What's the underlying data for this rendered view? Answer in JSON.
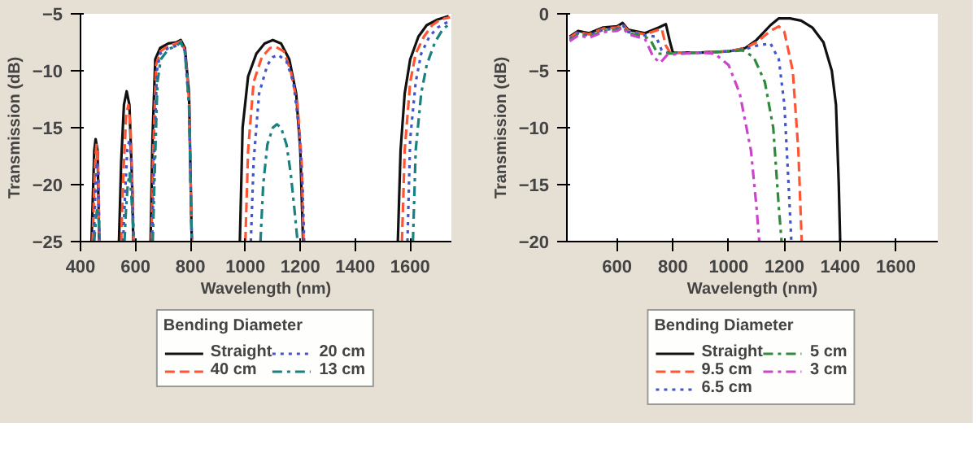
{
  "chart_data": [
    {
      "type": "line",
      "xlabel": "Wavelength (nm)",
      "ylabel": "Transmission (dB)",
      "legend_title": "Bending Diameter",
      "legend": "bottom",
      "xlim": [
        400,
        1750
      ],
      "ylim": [
        -25,
        -5
      ],
      "xticks": [
        400,
        600,
        800,
        1000,
        1200,
        1400,
        1600
      ],
      "yticks": [
        -25,
        -20,
        -15,
        -10,
        -5
      ],
      "series": [
        {
          "name": "Straight",
          "color": "#111111",
          "line_style": "solid",
          "x": [
            440,
            450,
            455,
            462,
            468,
            500,
            540,
            548,
            558,
            568,
            578,
            588,
            592,
            620,
            655,
            662,
            672,
            690,
            720,
            750,
            765,
            780,
            795,
            805,
            900,
            980,
            990,
            1010,
            1040,
            1070,
            1100,
            1130,
            1160,
            1185,
            1200,
            1210,
            1400,
            1555,
            1565,
            1580,
            1600,
            1630,
            1660,
            1700,
            1740
          ],
          "values": [
            -25,
            -17,
            -16,
            -17,
            -25,
            null,
            -25,
            -18,
            -13,
            -11.8,
            -13,
            -20,
            -25,
            null,
            -25,
            -16,
            -9,
            -8,
            -7.6,
            -7.5,
            -7.3,
            -8,
            -12,
            -25,
            null,
            -25,
            -15,
            -10.5,
            -8.5,
            -7.6,
            -7.3,
            -7.6,
            -9,
            -12,
            -17,
            -25,
            null,
            -25,
            -17,
            -12,
            -9,
            -7,
            -6,
            -5.5,
            -5.2
          ]
        },
        {
          "name": "40 cm",
          "color": "#ff5533",
          "line_style": "dashed",
          "x": [
            444,
            453,
            458,
            464,
            468,
            500,
            548,
            556,
            566,
            574,
            582,
            590,
            593,
            620,
            658,
            665,
            675,
            690,
            720,
            750,
            765,
            780,
            795,
            805,
            900,
            1000,
            1010,
            1030,
            1060,
            1090,
            1110,
            1140,
            1165,
            1190,
            1205,
            1212,
            1400,
            1570,
            1580,
            1600,
            1620,
            1650,
            1680,
            1710,
            1745
          ],
          "values": [
            -25,
            -18,
            -16.5,
            -18,
            -25,
            null,
            -25,
            -19,
            -14,
            -13,
            -15,
            -21,
            -25,
            null,
            -25,
            -17,
            -9.5,
            -8.3,
            -7.8,
            -7.6,
            -7.4,
            -8.2,
            -12.5,
            -25,
            null,
            -25,
            -17,
            -11,
            -8.8,
            -8,
            -7.9,
            -8.3,
            -10,
            -13,
            -18,
            -25,
            null,
            -25,
            -17,
            -11,
            -8.5,
            -7,
            -6,
            -5.5,
            -5.3
          ]
        },
        {
          "name": "20 cm",
          "color": "#4455cc",
          "line_style": "dotted",
          "x": [
            448,
            455,
            460,
            465,
            469,
            500,
            555,
            562,
            570,
            578,
            585,
            590,
            594,
            620,
            660,
            668,
            678,
            690,
            720,
            750,
            765,
            780,
            795,
            805,
            900,
            1020,
            1030,
            1050,
            1080,
            1100,
            1120,
            1150,
            1175,
            1195,
            1208,
            1214,
            1400,
            1590,
            1600,
            1620,
            1640,
            1670,
            1700,
            1745
          ],
          "values": [
            -25,
            -20,
            -18,
            -19,
            -25,
            null,
            -25,
            -21,
            -17,
            -16,
            -18,
            -22,
            -25,
            null,
            -25,
            -18,
            -10,
            -8.5,
            -8,
            -7.8,
            -7.5,
            -8.3,
            -13,
            -25,
            null,
            -25,
            -18,
            -12,
            -9.5,
            -8.8,
            -8.6,
            -9.2,
            -11,
            -15,
            -20,
            -25,
            null,
            -25,
            -16,
            -11,
            -8.5,
            -7,
            -6.2,
            -5.6
          ]
        },
        {
          "name": "13 cm",
          "color": "#1a8080",
          "line_style": "dashdot",
          "x": [
            450,
            456,
            461,
            466,
            470,
            500,
            560,
            566,
            572,
            579,
            585,
            590,
            594,
            620,
            663,
            670,
            680,
            692,
            720,
            750,
            765,
            780,
            795,
            805,
            900,
            1055,
            1065,
            1080,
            1100,
            1115,
            1130,
            1150,
            1165,
            1178,
            1190,
            1400,
            1610,
            1620,
            1640,
            1660,
            1690,
            1720,
            1750
          ],
          "values": [
            -25,
            -23,
            -22,
            -23,
            -25,
            null,
            -25,
            -22,
            -20,
            -19,
            -21,
            -23,
            -25,
            null,
            -25,
            -19,
            -11,
            -9,
            -8.1,
            -7.8,
            -7.5,
            -8.4,
            -13,
            -25,
            null,
            -25,
            -20,
            -16.5,
            -15,
            -14.7,
            -15,
            -16.5,
            -19,
            -22,
            -25,
            null,
            -25,
            -17,
            -12,
            -9.5,
            -7.5,
            -6.3,
            -5.8
          ]
        }
      ]
    },
    {
      "type": "line",
      "xlabel": "Wavelength (nm)",
      "ylabel": "Transmission (dB)",
      "legend_title": "Bending Diameter",
      "legend": "bottom",
      "xlim": [
        420,
        1750
      ],
      "ylim": [
        -20,
        0
      ],
      "xticks": [
        600,
        800,
        1000,
        1200,
        1400,
        1600
      ],
      "yticks": [
        -20,
        -15,
        -10,
        -5,
        0
      ],
      "series": [
        {
          "name": "Straight",
          "color": "#111111",
          "line_style": "solid",
          "x": [
            430,
            460,
            500,
            550,
            600,
            620,
            640,
            700,
            750,
            775,
            790,
            800,
            900,
            1000,
            1060,
            1100,
            1150,
            1180,
            1220,
            1260,
            1300,
            1340,
            1370,
            1385,
            1395,
            1400
          ],
          "values": [
            -2,
            -1.5,
            -1.7,
            -1.2,
            -1.1,
            -0.8,
            -1.4,
            -1.7,
            -1.2,
            -0.9,
            -2.5,
            -3.4,
            -3.4,
            -3.3,
            -3,
            -2.3,
            -1,
            -0.4,
            -0.4,
            -0.6,
            -1.2,
            -2.5,
            -5,
            -8,
            -15,
            -20
          ]
        },
        {
          "name": "9.5 cm",
          "color": "#ff5533",
          "line_style": "dashed",
          "x": [
            430,
            460,
            500,
            550,
            600,
            620,
            640,
            700,
            760,
            775,
            790,
            900,
            1000,
            1060,
            1100,
            1150,
            1180,
            1200,
            1230,
            1250,
            1262
          ],
          "values": [
            -2.1,
            -1.6,
            -1.8,
            -1.3,
            -1.2,
            -0.9,
            -1.5,
            -1.8,
            -1.3,
            -2.8,
            -3.4,
            -3.4,
            -3.3,
            -3,
            -2.5,
            -1.5,
            -1.1,
            -1.6,
            -5,
            -12,
            -20
          ]
        },
        {
          "name": "6.5 cm",
          "color": "#4455cc",
          "line_style": "dotted",
          "x": [
            430,
            460,
            500,
            550,
            600,
            620,
            640,
            700,
            740,
            760,
            780,
            900,
            1000,
            1060,
            1100,
            1150,
            1180,
            1200,
            1215,
            1225
          ],
          "values": [
            -2.2,
            -1.7,
            -1.9,
            -1.4,
            -1.3,
            -1,
            -1.6,
            -1.9,
            -2,
            -3.2,
            -3.4,
            -3.4,
            -3.3,
            -3.1,
            -2.8,
            -2.6,
            -4,
            -8,
            -15,
            -20
          ]
        },
        {
          "name": "5 cm",
          "color": "#2e8b3a",
          "line_style": "dashdot",
          "x": [
            430,
            460,
            500,
            550,
            600,
            620,
            640,
            700,
            720,
            745,
            770,
            900,
            1000,
            1050,
            1090,
            1130,
            1160,
            1180,
            1190
          ],
          "values": [
            -2.3,
            -1.8,
            -2,
            -1.5,
            -1.4,
            -1.1,
            -1.7,
            -2,
            -2.3,
            -3.5,
            -3.5,
            -3.4,
            -3.3,
            -3.2,
            -3.8,
            -6,
            -10,
            -17,
            -20
          ]
        },
        {
          "name": "3 cm",
          "color": "#cc44cc",
          "line_style": "dashdot",
          "x": [
            430,
            460,
            500,
            550,
            600,
            620,
            640,
            700,
            730,
            755,
            780,
            900,
            950,
            1000,
            1040,
            1080,
            1100,
            1110
          ],
          "values": [
            -2.4,
            -1.9,
            -2.1,
            -1.6,
            -1.5,
            -1.2,
            -1.8,
            -2.2,
            -3.8,
            -4.3,
            -3.6,
            -3.4,
            -3.5,
            -4.5,
            -7,
            -12,
            -17,
            -20
          ]
        }
      ]
    }
  ]
}
